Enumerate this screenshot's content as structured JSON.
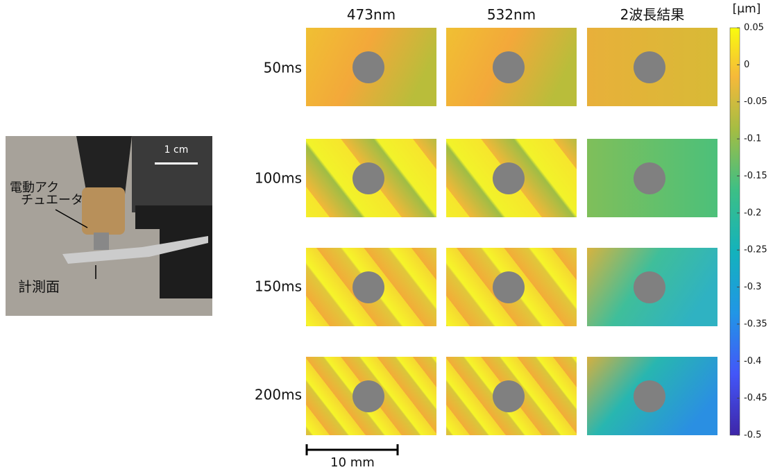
{
  "photo": {
    "scale_label": "1 cm",
    "actuator_label": [
      "電動アク",
      "チュエータ"
    ],
    "surface_label": "計測面"
  },
  "columns": [
    "473nm",
    "532nm",
    "2波長結果"
  ],
  "rows": [
    "50ms",
    "100ms",
    "150ms",
    "200ms"
  ],
  "colorbar": {
    "unit": "[μm]",
    "lim": [
      -0.5,
      0.05
    ],
    "ticks": [
      0.05,
      0,
      -0.05,
      -0.1,
      -0.15,
      -0.2,
      -0.25,
      -0.3,
      -0.35,
      -0.4,
      -0.45,
      -0.5
    ]
  },
  "scale_bar": "10 mm"
}
